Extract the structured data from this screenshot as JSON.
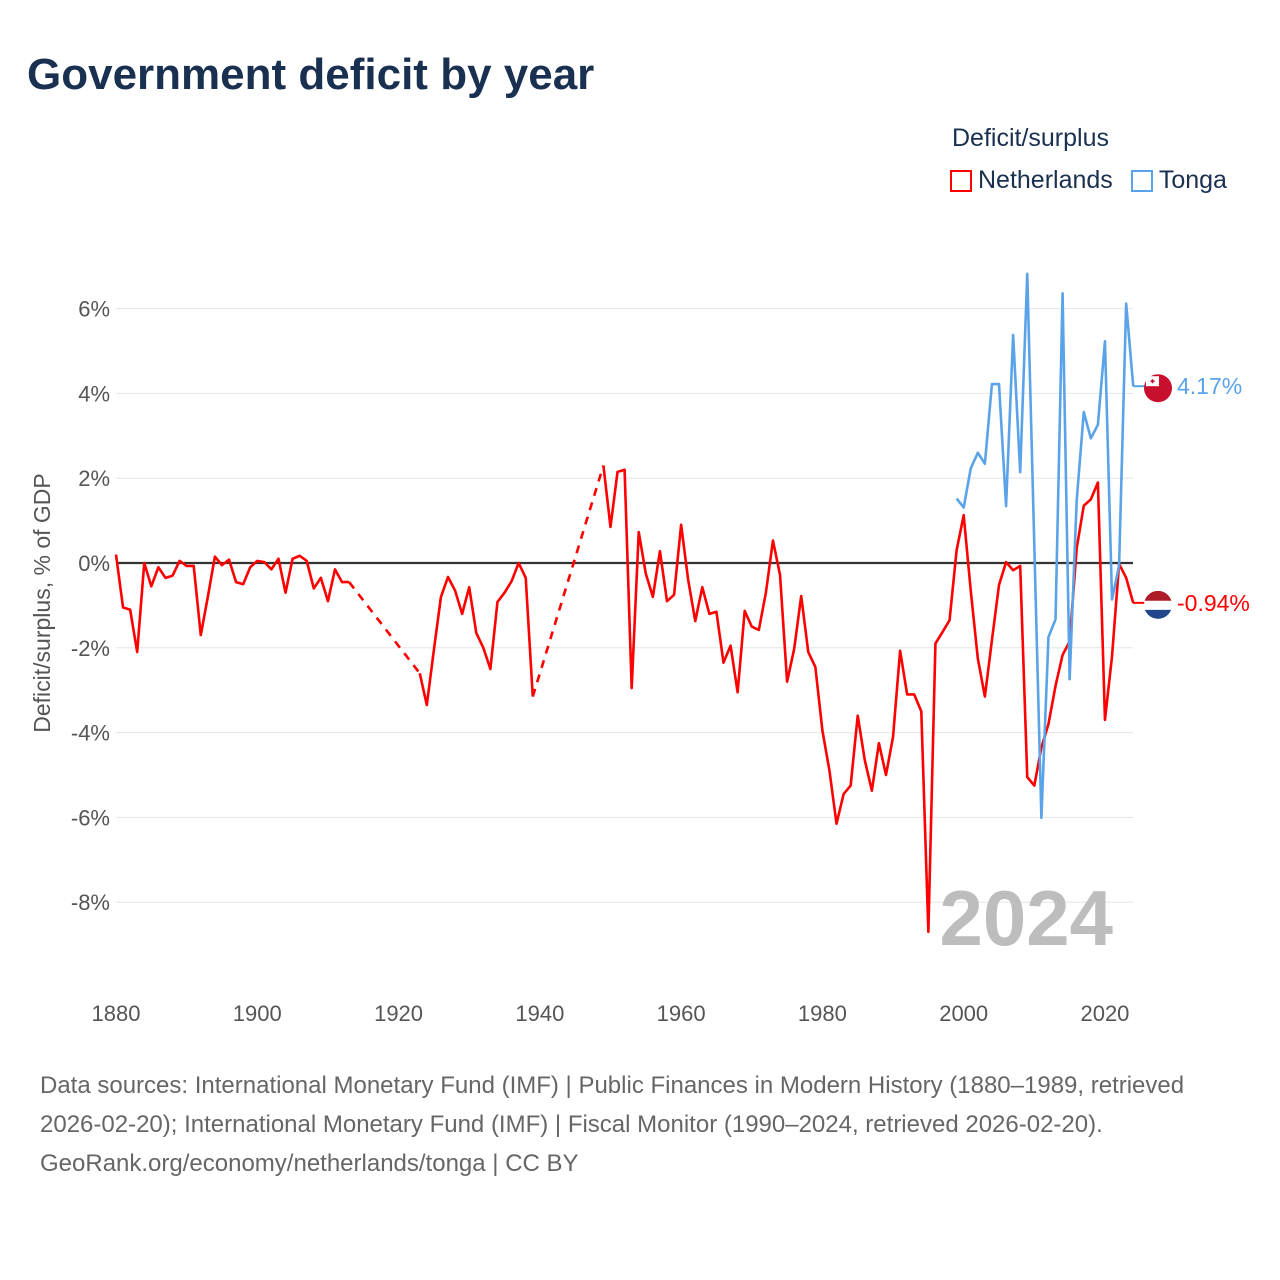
{
  "chart_data": {
    "type": "line",
    "title": "Government deficit by year",
    "ylabel": "Deficit/surplus, % of GDP",
    "xlabel": "",
    "xlim": [
      1880,
      2024
    ],
    "ylim": [
      -10,
      7
    ],
    "x_ticks": [
      1880,
      1900,
      1920,
      1940,
      1960,
      1980,
      2000,
      2020
    ],
    "y_ticks": [
      6,
      4,
      2,
      0,
      -2,
      -4,
      -6,
      -8
    ],
    "y_tick_labels": [
      "6%",
      "4%",
      "2%",
      "0%",
      "-2%",
      "-4%",
      "-6%",
      "-8%"
    ],
    "grid": true,
    "legend_title": "Deficit/surplus",
    "legend_position": "top-right",
    "watermark_year": "2024",
    "series": [
      {
        "name": "Netherlands",
        "color": "#ff0000",
        "end_label": "-0.94%",
        "start_year": 1880,
        "values": [
          0.2,
          -1.05,
          -1.1,
          -2.1,
          0,
          -0.55,
          -0.1,
          -0.35,
          -0.3,
          0.05,
          -0.07,
          -0.07,
          -1.7,
          -0.8,
          0.15,
          -0.05,
          0.08,
          -0.45,
          -0.5,
          -0.1,
          0.05,
          0.02,
          -0.15,
          0.1,
          -0.7,
          0.1,
          0.17,
          0.05,
          -0.6,
          -0.35,
          -0.9,
          -0.15,
          -0.45,
          -0.45,
          null,
          null,
          null,
          null,
          null,
          null,
          null,
          null,
          null,
          -2.6,
          -3.35,
          -2.05,
          -0.8,
          -0.33,
          -0.65,
          -1.2,
          -0.57,
          -1.65,
          -2.0,
          -2.5,
          -0.92,
          -0.7,
          -0.43,
          0,
          -0.35,
          -3.15,
          null,
          null,
          null,
          null,
          null,
          null,
          null,
          null,
          null,
          2.3,
          0.85,
          2.15,
          2.2,
          -2.95,
          0.73,
          -0.25,
          -0.8,
          0.28,
          -0.9,
          -0.75,
          0.9,
          -0.4,
          -1.37,
          -0.57,
          -1.2,
          -1.15,
          -2.35,
          -1.95,
          -3.05,
          -1.13,
          -1.5,
          -1.58,
          -0.7,
          0.53,
          -0.28,
          -2.8,
          -2.03,
          -0.78,
          -2.1,
          -2.45,
          -3.95,
          -4.9,
          -6.15,
          -5.45,
          -5.25,
          -3.6,
          -4.65,
          -5.37,
          -4.25,
          -5.0,
          -4.1,
          -2.07,
          -3.1,
          -3.1,
          -3.5,
          -8.7,
          -1.9,
          -1.63,
          -1.35,
          0.3,
          1.13,
          -0.65,
          -2.25,
          -3.15,
          -1.82,
          -0.52,
          0.02,
          -0.17,
          -0.07,
          -5.05,
          -5.25,
          -4.35,
          -3.8,
          -2.9,
          -2.17,
          -1.85,
          0.35,
          1.35,
          1.5,
          1.9,
          -3.7,
          -2.2,
          -0.02,
          -0.35,
          -0.94
        ]
      },
      {
        "name": "Tonga",
        "color": "#5ba3e8",
        "end_label": "4.17%",
        "start_year": 1999,
        "values": [
          1.52,
          1.31,
          2.23,
          2.6,
          2.34,
          4.22,
          4.22,
          1.34,
          5.38,
          2.14,
          6.82,
          0.4,
          -6.01,
          -1.75,
          -1.33,
          6.36,
          -2.74,
          1.48,
          3.56,
          2.94,
          3.26,
          5.23,
          -0.86,
          -0.06,
          6.12,
          4.17
        ]
      }
    ]
  },
  "footer": {
    "sources": "Data sources: International Monetary Fund (IMF) | Public Finances in Modern History (1880–1989, retrieved 2026-02-20); International Monetary Fund (IMF) | Fiscal Monitor (1990–2024, retrieved 2026-02-20).",
    "credit": "GeoRank.org/economy/netherlands/tonga | CC BY"
  }
}
